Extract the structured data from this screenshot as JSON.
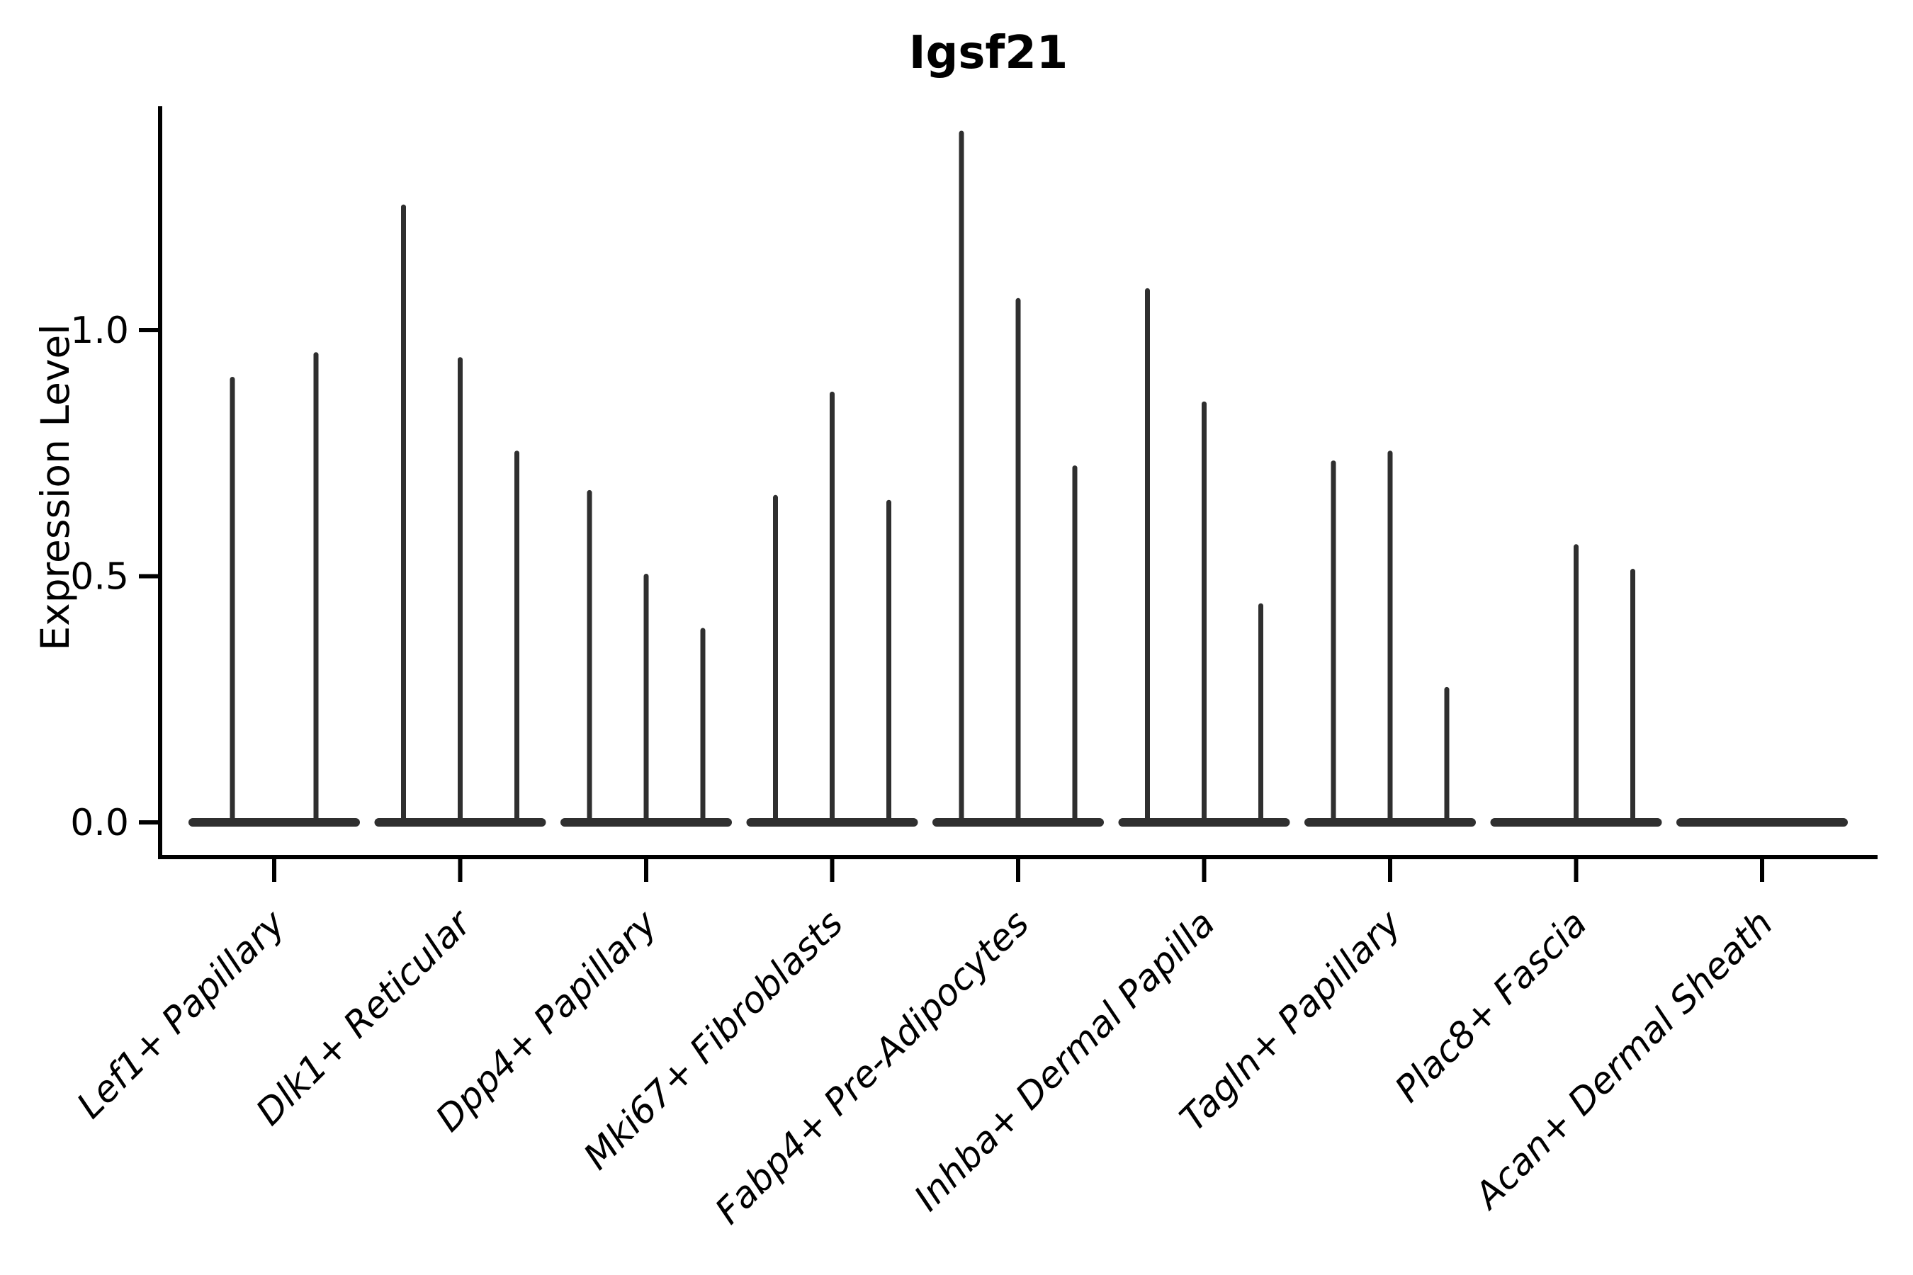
{
  "title": "Igsf21",
  "y_axis": {
    "label": "Expression Level",
    "tick_labels": [
      "0.0",
      "0.5",
      "1.0"
    ],
    "tick_values": [
      0.0,
      0.5,
      1.0
    ]
  },
  "chart_data": {
    "type": "violin",
    "title": "Igsf21",
    "xlabel": "",
    "ylabel": "Expression Level",
    "ylim": [
      0,
      1.45
    ],
    "y_ticks": [
      0.0,
      0.5,
      1.0
    ],
    "grid": false,
    "legend": "none",
    "categories": [
      "Lef1+ Papillary",
      "Dlk1+ Reticular",
      "Dpp4+ Papillary",
      "Mki67+ Fibroblasts",
      "Fabp4+ Pre-Adipocytes",
      "Inhba+ Dermal Papilla",
      "Tagln+ Papillary",
      "Plac8+ Fascia",
      "Acan+ Dermal Sheath"
    ],
    "violins": [
      {
        "category": "Lef1+ Papillary",
        "spike_maxima": [
          0.9,
          0.95
        ]
      },
      {
        "category": "Dlk1+ Reticular",
        "spike_maxima": [
          1.25,
          0.94,
          0.75
        ]
      },
      {
        "category": "Dpp4+ Papillary",
        "spike_maxima": [
          0.67,
          0.5,
          0.39
        ]
      },
      {
        "category": "Mki67+ Fibroblasts",
        "spike_maxima": [
          0.66,
          0.87,
          0.65
        ]
      },
      {
        "category": "Fabp4+ Pre-Adipocytes",
        "spike_maxima": [
          1.4,
          1.06,
          0.72
        ]
      },
      {
        "category": "Inhba+ Dermal Papilla",
        "spike_maxima": [
          1.08,
          0.85,
          0.44
        ]
      },
      {
        "category": "Tagln+ Papillary",
        "spike_maxima": [
          0.73,
          0.75,
          0.27
        ]
      },
      {
        "category": "Plac8+ Fascia",
        "spike_maxima": [
          0,
          0.56,
          0.51
        ]
      },
      {
        "category": "Acan+ Dermal Sheath",
        "spike_maxima": [
          0,
          0,
          0
        ]
      }
    ]
  },
  "colors": {
    "violin": "#2f2f2f",
    "axis": "#000000",
    "text": "#000000",
    "background": "#ffffff"
  }
}
